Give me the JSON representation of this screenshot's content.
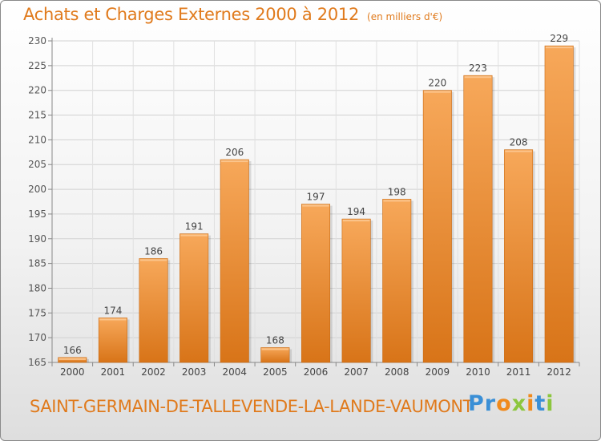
{
  "chart_data": {
    "type": "bar",
    "title": "Achats et Charges Externes 2000 à 2012",
    "unit_note": "(en milliers d'€)",
    "categories": [
      "2000",
      "2001",
      "2002",
      "2003",
      "2004",
      "2005",
      "2006",
      "2007",
      "2008",
      "2009",
      "2010",
      "2011",
      "2012"
    ],
    "values": [
      166,
      174,
      186,
      191,
      206,
      168,
      197,
      194,
      198,
      220,
      223,
      208,
      229
    ],
    "ylim": [
      165,
      230
    ],
    "yticks": [
      165,
      170,
      175,
      180,
      185,
      190,
      195,
      200,
      205,
      210,
      215,
      220,
      225,
      230
    ],
    "grid": true,
    "legend": "none",
    "bar_color": "#f0912e",
    "bar_color_light": "#f7a85a",
    "bar_color_dark": "#d87418"
  },
  "footer": {
    "commune": "SAINT-GERMAIN-DE-TALLEVENDE-LA-LANDE-VAUMONT",
    "logo": "Proxiti"
  }
}
